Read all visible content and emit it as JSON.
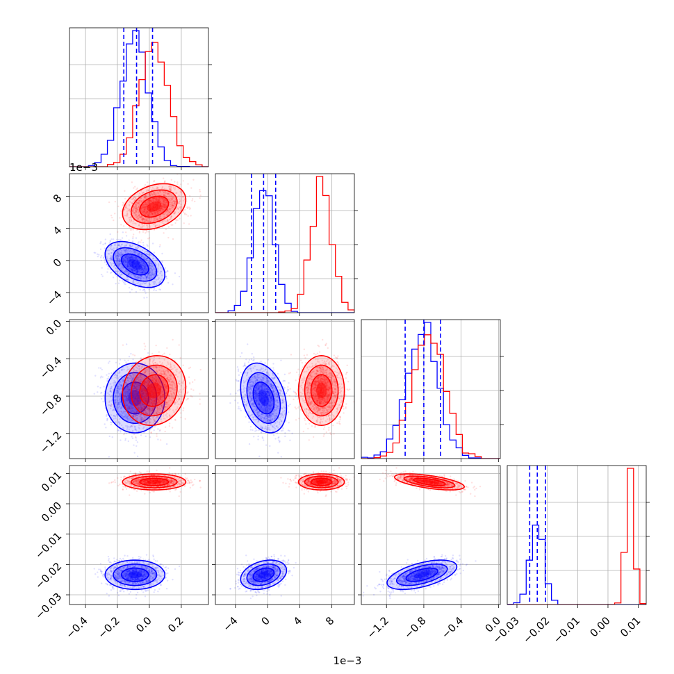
{
  "chart_data": {
    "type": "corner",
    "grid": true,
    "colors": {
      "series_a": "#0000ff",
      "series_b": "#ff0000",
      "quantile_lines": "#0000ff"
    },
    "variables": [
      {
        "range": [
          -0.5,
          0.37
        ],
        "ticks": [
          -0.4,
          -0.2,
          0.0,
          0.2
        ],
        "tick_labels": [
          "−0.4",
          "−0.2",
          "0.0",
          "0.2"
        ],
        "offset_label": ""
      },
      {
        "range": [
          -0.0065,
          0.0108
        ],
        "ticks": [
          -0.004,
          0.0,
          0.004,
          0.008
        ],
        "tick_labels": [
          "−4",
          "0",
          "4",
          "8"
        ],
        "offset_label": "1e−3"
      },
      {
        "range": [
          -1.47,
          0.02
        ],
        "ticks": [
          -1.2,
          -0.8,
          -0.4,
          0.0
        ],
        "tick_labels": [
          "−1.2",
          "−0.8",
          "−0.4",
          "0.0"
        ],
        "offset_label": ""
      },
      {
        "range": [
          -0.0332,
          0.0126
        ],
        "ticks": [
          -0.03,
          -0.02,
          -0.01,
          0.0,
          0.01
        ],
        "tick_labels": [
          "−0.03",
          "−0.02",
          "−0.01",
          "0.00",
          "0.01"
        ],
        "offset_label": ""
      }
    ],
    "series": [
      {
        "color": "#0000ff",
        "means": [
          -0.09,
          -0.0005,
          -0.82,
          -0.0234
        ],
        "stds": [
          0.085,
          0.0013,
          0.17,
          0.0022
        ],
        "correlations": {
          "0-1": -0.45,
          "0-2": 0.0,
          "0-3": 0.0,
          "1-2": -0.3,
          "1-3": 0.3,
          "2-3": 0.55
        },
        "quantiles": [
          [
            -0.16,
            -0.08,
            0.02
          ],
          [
            -0.002,
            -0.0005,
            0.001
          ],
          [
            -1.0,
            -0.8,
            -0.62
          ],
          [
            -0.0258,
            -0.0233,
            -0.0206
          ]
        ]
      },
      {
        "color": "#ff0000",
        "means": [
          0.03,
          0.0067,
          -0.74,
          0.0072
        ],
        "stds": [
          0.09,
          0.0013,
          0.17,
          0.0012
        ],
        "correlations": {
          "0-1": 0.3,
          "0-2": 0.1,
          "0-3": 0.0,
          "1-2": 0.0,
          "1-3": 0.0,
          "2-3": -0.6
        }
      }
    ]
  }
}
